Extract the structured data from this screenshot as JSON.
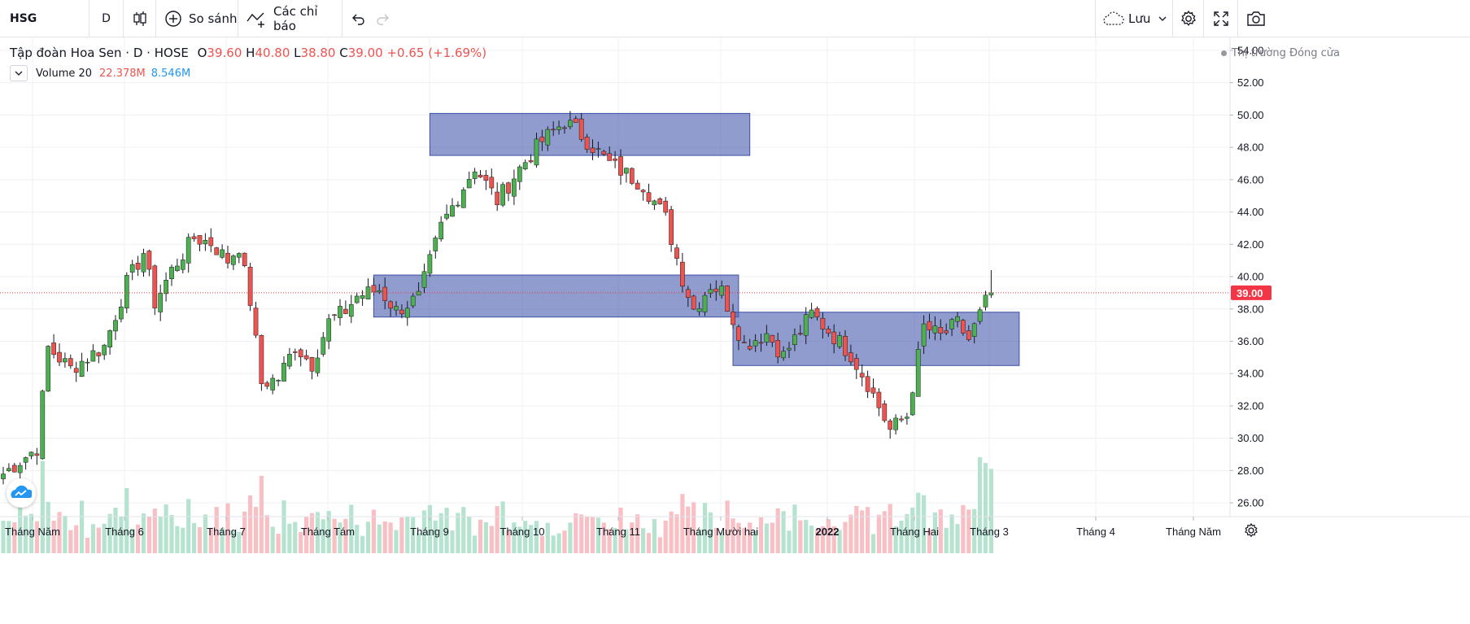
{
  "toolbar": {
    "symbol": "HSG",
    "interval": "D",
    "compare_label": "So sánh",
    "indicators_label": "Các chỉ báo",
    "save_label": "Lưu"
  },
  "legend": {
    "name": "Tập đoàn Hoa Sen",
    "sep1": "·",
    "interval": "D",
    "sep2": "·",
    "exchange": "HOSE",
    "o_key": "O",
    "o_val": "39.60",
    "h_key": "H",
    "h_val": "40.80",
    "l_key": "L",
    "l_val": "38.80",
    "c_key": "C",
    "c_val": "39.00",
    "change": "+0.65 (+1.69%)",
    "volume_label": "Volume 20",
    "volume_val1": "22.378M",
    "volume_val2": "8.546M"
  },
  "market_status": "Thị trường Đóng cửa",
  "colors": {
    "up": "#26a69a",
    "candle_up": "#4caf50",
    "down": "#ef5350",
    "vol_up": "#b6e3cf",
    "vol_down": "#f8bfc4",
    "zone_fill": "#5466b4",
    "zone_stroke": "#3f51a5",
    "grid": "#eef0f4",
    "price_tag": "#f23645",
    "volume_val2": "#2196f3"
  },
  "chart_data": {
    "type": "candlestick",
    "y_ticks": [
      "54.00",
      "52.00",
      "50.00",
      "48.00",
      "46.00",
      "44.00",
      "42.00",
      "40.00",
      "38.00",
      "36.00",
      "34.00",
      "32.00",
      "30.00",
      "28.00",
      "26.00"
    ],
    "y_range": [
      25.0,
      54.5
    ],
    "x_labels": [
      {
        "label": "Tháng Năm",
        "bold": false
      },
      {
        "label": "Tháng 6",
        "bold": false
      },
      {
        "label": "Tháng 7",
        "bold": false
      },
      {
        "label": "Tháng Tám",
        "bold": false
      },
      {
        "label": "Tháng 9",
        "bold": false
      },
      {
        "label": "Tháng 10",
        "bold": false
      },
      {
        "label": "Tháng 11",
        "bold": false
      },
      {
        "label": "Tháng Mười hai",
        "bold": false
      },
      {
        "label": "2022",
        "bold": true
      },
      {
        "label": "Tháng Hai",
        "bold": false
      },
      {
        "label": "Tháng 3",
        "bold": false
      },
      {
        "label": "Tháng 4",
        "bold": false
      },
      {
        "label": "Tháng Năm",
        "bold": false
      }
    ],
    "last_price": "39.00",
    "last_price_value": 39.0,
    "zones": [
      {
        "y_top": 50.1,
        "y_bottom": 47.5,
        "start_index": 76,
        "end_index": 133
      },
      {
        "y_top": 40.1,
        "y_bottom": 37.5,
        "start_index": 66,
        "end_index": 131
      },
      {
        "y_top": 37.8,
        "y_bottom": 34.5,
        "start_index": 130,
        "end_index": 181
      }
    ],
    "anchors": [
      [
        0,
        27.8
      ],
      [
        6,
        29.4
      ],
      [
        8,
        35.6
      ],
      [
        12,
        34.3
      ],
      [
        18,
        35.7
      ],
      [
        22,
        39.6
      ],
      [
        25,
        41.5
      ],
      [
        27,
        38.4
      ],
      [
        30,
        40.4
      ],
      [
        34,
        42.4
      ],
      [
        37,
        42.1
      ],
      [
        40,
        41.0
      ],
      [
        42,
        41.9
      ],
      [
        44,
        38.5
      ],
      [
        46,
        33.4
      ],
      [
        49,
        33.7
      ],
      [
        52,
        35.7
      ],
      [
        55,
        34.6
      ],
      [
        58,
        37.2
      ],
      [
        61,
        37.9
      ],
      [
        63,
        38.8
      ],
      [
        67,
        39.2
      ],
      [
        70,
        37.9
      ],
      [
        74,
        38.7
      ],
      [
        78,
        43.1
      ],
      [
        84,
        46.8
      ],
      [
        88,
        44.7
      ],
      [
        92,
        46.7
      ],
      [
        96,
        48.4
      ],
      [
        100,
        49.6
      ],
      [
        102,
        49.1
      ],
      [
        108,
        47.0
      ],
      [
        114,
        45.7
      ],
      [
        118,
        43.6
      ],
      [
        121,
        39.9
      ],
      [
        123,
        38.0
      ],
      [
        126,
        39.5
      ],
      [
        128,
        39.1
      ],
      [
        130,
        37.4
      ],
      [
        132,
        35.8
      ],
      [
        136,
        36.5
      ],
      [
        139,
        35.1
      ],
      [
        144,
        37.7
      ],
      [
        148,
        36.3
      ],
      [
        151,
        35.2
      ],
      [
        154,
        33.4
      ],
      [
        158,
        30.5
      ],
      [
        161,
        31.4
      ],
      [
        164,
        36.9
      ],
      [
        167,
        36.3
      ],
      [
        170,
        37.1
      ],
      [
        172,
        36.1
      ],
      [
        175,
        38.4
      ],
      [
        176,
        39.0
      ]
    ],
    "volume_max_m": 22.4
  }
}
